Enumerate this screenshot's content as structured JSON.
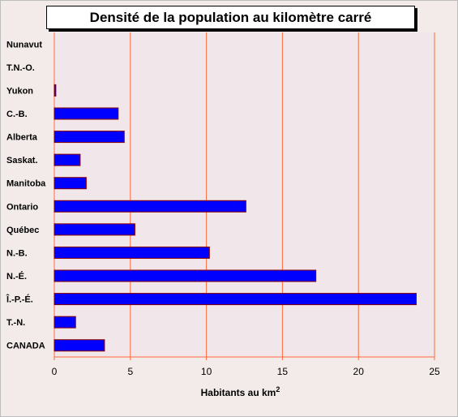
{
  "chart_data": {
    "type": "bar",
    "orientation": "horizontal",
    "title": "Densité de la population au kilomètre carré",
    "categories": [
      "Nunavut",
      "T.N.-O.",
      "Yukon",
      "C.-B.",
      "Alberta",
      "Saskat.",
      "Manitoba",
      "Ontario",
      "Québec",
      "N.-B.",
      "N.-É.",
      "Î.-P.-É.",
      "T.-N.",
      "CANADA"
    ],
    "values": [
      0.0,
      0.0,
      0.1,
      4.2,
      4.6,
      1.7,
      2.1,
      12.6,
      5.3,
      10.2,
      17.2,
      23.8,
      1.4,
      3.3
    ],
    "xlabel": "Habitants au km",
    "xlabel_sup": "2",
    "xlim": [
      0,
      25
    ],
    "xticks": [
      "0",
      "5",
      "10",
      "15",
      "20",
      "25"
    ],
    "grid": true,
    "colors": {
      "bar": "#0000ff",
      "bar_border": "#8b0000",
      "grid": "#ff6a3d",
      "plot_bg": "#f1e6e9",
      "page_bg": "#f2ebe9"
    }
  }
}
